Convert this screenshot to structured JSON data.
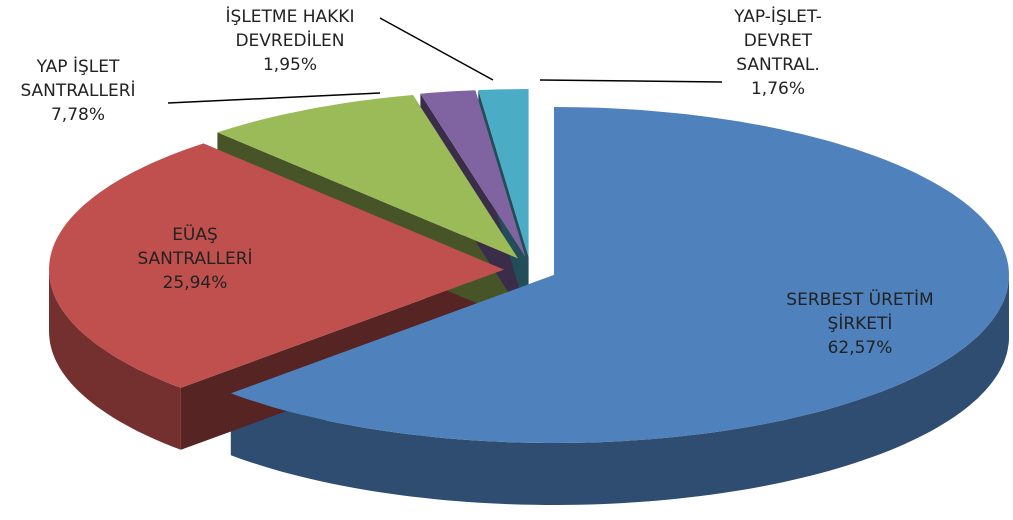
{
  "chart_data": {
    "type": "pie3d",
    "categories": [
      "SERBEST ÜRETİM\nŞİRKETİ",
      "EÜAŞ\nSANTRALLERİ",
      "YAP İŞLET\nSANTRALLERİ",
      "İŞLETME HAKKI\nDEVREDİLEN",
      "YAP-İŞLET-\nDEVRET\nSANTRAL."
    ],
    "values": [
      62.57,
      25.94,
      7.78,
      1.95,
      1.76
    ],
    "value_labels": [
      "62,57%",
      "25,94%",
      "7,78%",
      "1,95%",
      "1,76%"
    ],
    "colors": [
      "#4f81bd",
      "#c0504d",
      "#9bbb59",
      "#8064a2",
      "#4bacc6"
    ]
  }
}
